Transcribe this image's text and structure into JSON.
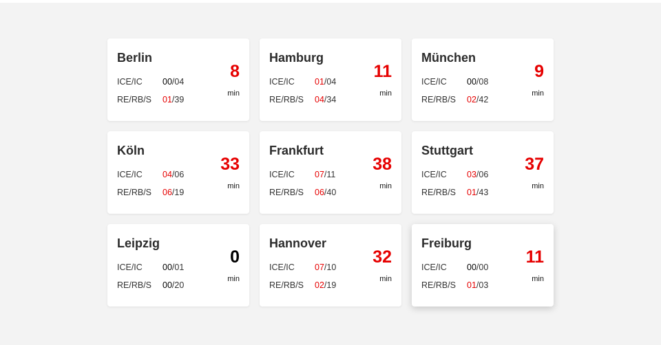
{
  "colors": {
    "alert": "#e60000",
    "ok": "#000000",
    "background": "#f3f3f3",
    "card": "#ffffff"
  },
  "labels": {
    "ice": "ICE/IC",
    "regional": "RE/RB/S",
    "unit": "min"
  },
  "stations": [
    {
      "city": "Berlin",
      "ice_delayed": "00",
      "ice_total": "/04",
      "re_delayed": "01",
      "re_total": "/39",
      "minutes": "8"
    },
    {
      "city": "Hamburg",
      "ice_delayed": "01",
      "ice_total": "/04",
      "re_delayed": "04",
      "re_total": "/34",
      "minutes": "11"
    },
    {
      "city": "München",
      "ice_delayed": "00",
      "ice_total": "/08",
      "re_delayed": "02",
      "re_total": "/42",
      "minutes": "9"
    },
    {
      "city": "Köln",
      "ice_delayed": "04",
      "ice_total": "/06",
      "re_delayed": "06",
      "re_total": "/19",
      "minutes": "33"
    },
    {
      "city": "Frankfurt",
      "ice_delayed": "07",
      "ice_total": "/11",
      "re_delayed": "06",
      "re_total": "/40",
      "minutes": "38"
    },
    {
      "city": "Stuttgart",
      "ice_delayed": "03",
      "ice_total": "/06",
      "re_delayed": "01",
      "re_total": "/43",
      "minutes": "37"
    },
    {
      "city": "Leipzig",
      "ice_delayed": "00",
      "ice_total": "/01",
      "re_delayed": "00",
      "re_total": "/20",
      "minutes": "0"
    },
    {
      "city": "Hannover",
      "ice_delayed": "07",
      "ice_total": "/10",
      "re_delayed": "02",
      "re_total": "/19",
      "minutes": "32"
    },
    {
      "city": "Freiburg",
      "ice_delayed": "00",
      "ice_total": "/00",
      "re_delayed": "01",
      "re_total": "/03",
      "minutes": "11"
    }
  ]
}
